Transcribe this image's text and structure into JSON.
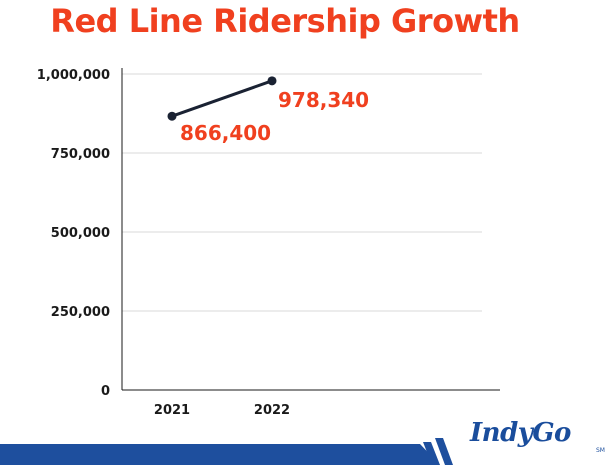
{
  "title": "Red Line Ridership Growth",
  "brand": {
    "logo_text": "IndyGo",
    "mark": "SM"
  },
  "colors": {
    "accent": "#f0401f",
    "line": "#1a2233",
    "brand_blue": "#1a4d9c",
    "band_blue": "#1e4f9e"
  },
  "chart_data": {
    "type": "line",
    "title": "Red Line Ridership Growth",
    "xlabel": "",
    "ylabel": "",
    "categories": [
      "2021",
      "2022"
    ],
    "series": [
      {
        "values": [
          866400,
          978340
        ]
      }
    ],
    "data_labels": [
      "866,400",
      "978,340"
    ],
    "ylim": [
      0,
      1000000
    ],
    "yticks": [
      0,
      250000,
      500000,
      750000,
      1000000
    ],
    "ytick_labels": [
      "0",
      "250,000",
      "500,000",
      "750,000",
      "1,000,000"
    ],
    "x_slots": 4,
    "grid": true,
    "legend": "none"
  }
}
